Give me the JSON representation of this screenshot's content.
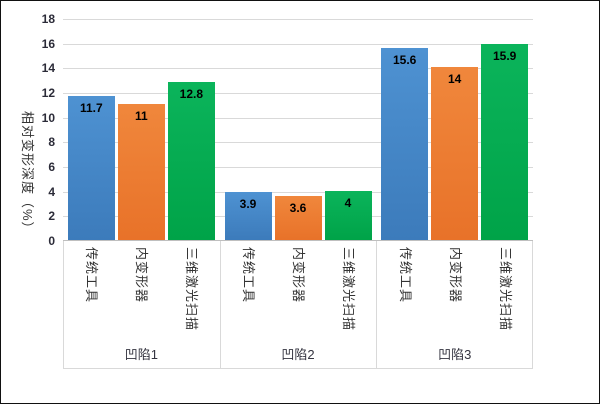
{
  "chart_data": {
    "type": "bar",
    "title": "",
    "xlabel": "",
    "ylabel": "相对变形深度（%）",
    "ylim": [
      0,
      18
    ],
    "ytick_step": 2,
    "yticks": [
      0,
      2,
      4,
      6,
      8,
      10,
      12,
      14,
      16,
      18
    ],
    "grid": true,
    "legend_position": "none",
    "value_label_position": "inside-end",
    "categories": [
      "凹陷1",
      "凹陷2",
      "凹陷3"
    ],
    "series": [
      {
        "name": "传统工具",
        "color": "#4187C6",
        "color_top": "#4E92D2",
        "color_bottom": "#3C7BBB",
        "values": [
          11.7,
          3.9,
          15.6
        ],
        "labels": [
          "11.7",
          "3.9",
          "15.6"
        ]
      },
      {
        "name": "内变形器",
        "color": "#ED7D31",
        "color_top": "#F0873C",
        "color_bottom": "#E87229",
        "values": [
          11,
          3.6,
          14
        ],
        "labels": [
          "11",
          "3.6",
          "14"
        ]
      },
      {
        "name": "三维激光扫描",
        "color": "#00AC50",
        "color_top": "#0BB45B",
        "color_bottom": "#00A348",
        "values": [
          12.8,
          4,
          15.9
        ],
        "labels": [
          "12.8",
          "4",
          "15.9"
        ]
      }
    ],
    "colors": {
      "gridline": "#D9D9D9",
      "axis_line": "#BFBFBF",
      "separator": "#D9D9D9",
      "tick_text": "#2B2B38",
      "label_text": "#333333",
      "value_text": "#000000",
      "frame_border": "#111111"
    }
  }
}
